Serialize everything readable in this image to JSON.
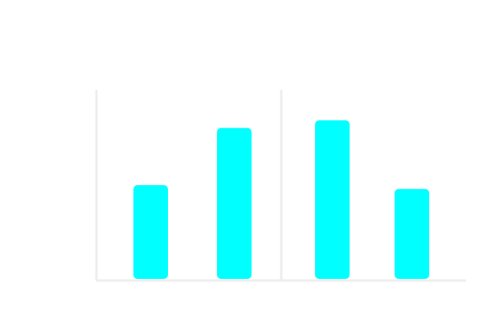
{
  "chart_data": {
    "type": "bar",
    "categories": [
      "",
      "",
      "",
      ""
    ],
    "values": [
      0.5,
      0.8,
      0.84,
      0.48
    ],
    "ylim": [
      0,
      1
    ],
    "grid": false,
    "legend": "none",
    "series": [
      {
        "values": [
          0.5,
          0.8,
          0.84,
          0.48
        ]
      }
    ]
  },
  "colors": {
    "bar": "#00FFFF",
    "axis": "#EEEEEE",
    "background": "#FFFFFF"
  }
}
